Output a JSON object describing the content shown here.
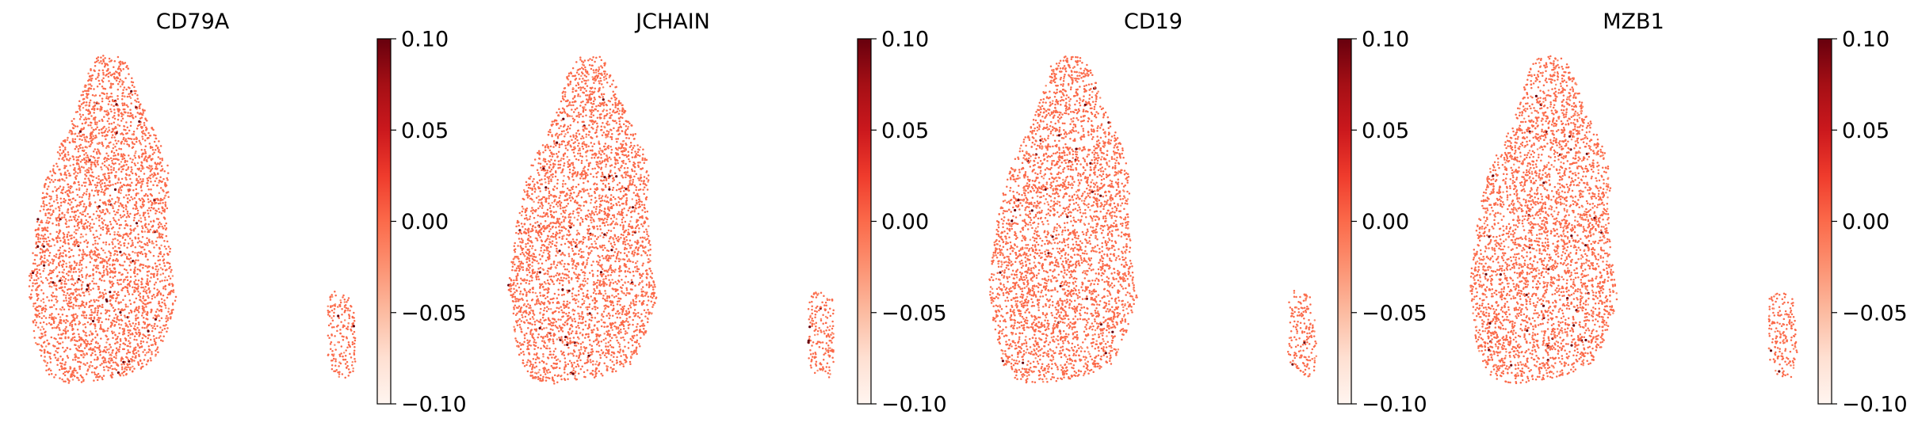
{
  "chart_data": [
    {
      "type": "scatter",
      "title": "CD79A",
      "colormap": "Reds",
      "point_color": "#fb6a4a",
      "highlight_color": "#67000d",
      "colorbar": {
        "ticks": [
          0.1,
          0.05,
          0.0,
          -0.05,
          -0.1
        ],
        "tick_labels": [
          "0.10",
          "0.05",
          "0.00",
          "−0.05",
          "−0.10"
        ],
        "range": [
          -0.1,
          0.1
        ]
      },
      "grid": false,
      "axes_visible": false
    },
    {
      "type": "scatter",
      "title": "JCHAIN",
      "colormap": "Reds",
      "point_color": "#fb6a4a",
      "highlight_color": "#67000d",
      "colorbar": {
        "ticks": [
          0.1,
          0.05,
          0.0,
          -0.05,
          -0.1
        ],
        "tick_labels": [
          "0.10",
          "0.05",
          "0.00",
          "−0.05",
          "−0.10"
        ],
        "range": [
          -0.1,
          0.1
        ]
      },
      "grid": false,
      "axes_visible": false
    },
    {
      "type": "scatter",
      "title": "CD19",
      "colormap": "Reds",
      "point_color": "#fb6a4a",
      "highlight_color": "#67000d",
      "colorbar": {
        "ticks": [
          0.1,
          0.05,
          0.0,
          -0.05,
          -0.1
        ],
        "tick_labels": [
          "0.10",
          "0.05",
          "0.00",
          "−0.05",
          "−0.10"
        ],
        "range": [
          -0.1,
          0.1
        ]
      },
      "grid": false,
      "axes_visible": false
    },
    {
      "type": "scatter",
      "title": "MZB1",
      "colormap": "Reds",
      "point_color": "#fb6a4a",
      "highlight_color": "#67000d",
      "colorbar": {
        "ticks": [
          0.1,
          0.05,
          0.0,
          -0.05,
          -0.1
        ],
        "tick_labels": [
          "0.10",
          "0.05",
          "0.00",
          "−0.05",
          "−0.10"
        ],
        "range": [
          -0.1,
          0.1
        ]
      },
      "grid": false,
      "axes_visible": false
    }
  ]
}
